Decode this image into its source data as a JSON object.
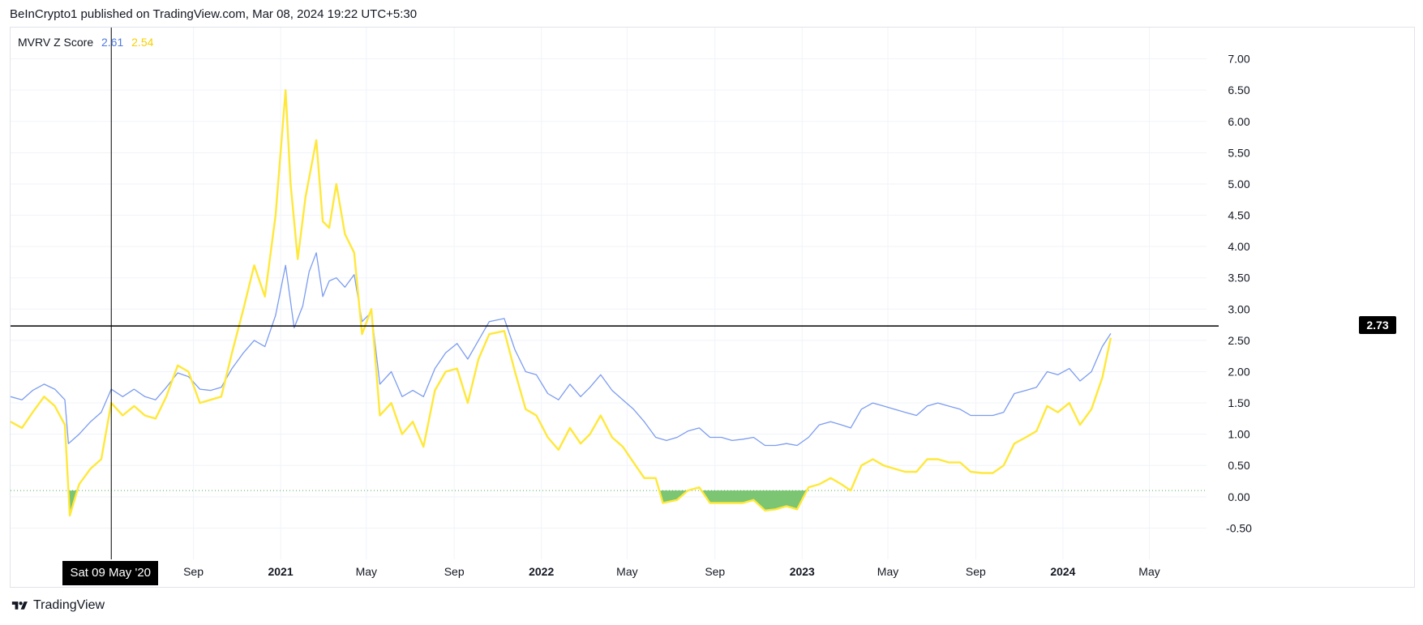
{
  "header": {
    "text": "BeInCrypto1 published on TradingView.com, Mar 08, 2024 19:22 UTC+5:30"
  },
  "legend": {
    "name": "MVRV Z Score",
    "value_blue": "2.61",
    "value_yellow": "2.54"
  },
  "crosshair": {
    "price_label": "2.73",
    "date_label": "Sat 09 May '20"
  },
  "footer": {
    "brand": "TradingView"
  },
  "colors": {
    "blue": "#7b9cf0",
    "yellow": "#ffe83a",
    "green_fill": "#74c26c",
    "grid": "#f0f3fa",
    "baseline_dots": "#4caf50"
  },
  "chart_data": {
    "type": "line",
    "title": "",
    "xlabel": "",
    "ylabel": "",
    "x_range": [
      "2019-12-20",
      "2024-07-20"
    ],
    "ylim": [
      -1.0,
      7.5
    ],
    "y_ticks": [
      "7.00",
      "6.50",
      "6.00",
      "5.50",
      "5.00",
      "4.50",
      "4.00",
      "3.50",
      "3.00",
      "2.50",
      "2.00",
      "1.50",
      "1.00",
      "0.50",
      "0.00",
      "-0.50"
    ],
    "x_ticks": [
      {
        "date": "2020-05-09",
        "label": "Sat 09 May '20",
        "bold": false,
        "hidden": true
      },
      {
        "date": "2020-09-01",
        "label": "Sep",
        "bold": false
      },
      {
        "date": "2021-01-01",
        "label": "2021",
        "bold": true
      },
      {
        "date": "2021-05-01",
        "label": "May",
        "bold": false
      },
      {
        "date": "2021-09-01",
        "label": "Sep",
        "bold": false
      },
      {
        "date": "2022-01-01",
        "label": "2022",
        "bold": true
      },
      {
        "date": "2022-05-01",
        "label": "May",
        "bold": false
      },
      {
        "date": "2022-09-01",
        "label": "Sep",
        "bold": false
      },
      {
        "date": "2023-01-01",
        "label": "2023",
        "bold": true
      },
      {
        "date": "2023-05-01",
        "label": "May",
        "bold": false
      },
      {
        "date": "2023-09-01",
        "label": "Sep",
        "bold": false
      },
      {
        "date": "2024-01-01",
        "label": "2024",
        "bold": true
      },
      {
        "date": "2024-05-01",
        "label": "May",
        "bold": false
      }
    ],
    "grid": true,
    "horizontal_line": 2.73,
    "baseline": 0.1,
    "series": [
      {
        "name": "",
        "color": "#7b9cf0",
        "points": [
          [
            "2019-12-20",
            1.6
          ],
          [
            "2020-01-05",
            1.55
          ],
          [
            "2020-01-20",
            1.7
          ],
          [
            "2020-02-05",
            1.8
          ],
          [
            "2020-02-20",
            1.72
          ],
          [
            "2020-03-05",
            1.55
          ],
          [
            "2020-03-10",
            0.85
          ],
          [
            "2020-03-25",
            1.0
          ],
          [
            "2020-04-10",
            1.2
          ],
          [
            "2020-04-25",
            1.35
          ],
          [
            "2020-05-09",
            1.72
          ],
          [
            "2020-05-25",
            1.6
          ],
          [
            "2020-06-10",
            1.72
          ],
          [
            "2020-06-25",
            1.6
          ],
          [
            "2020-07-10",
            1.55
          ],
          [
            "2020-07-25",
            1.75
          ],
          [
            "2020-08-10",
            1.98
          ],
          [
            "2020-08-25",
            1.92
          ],
          [
            "2020-09-10",
            1.72
          ],
          [
            "2020-09-25",
            1.7
          ],
          [
            "2020-10-10",
            1.75
          ],
          [
            "2020-10-25",
            2.05
          ],
          [
            "2020-11-10",
            2.3
          ],
          [
            "2020-11-25",
            2.5
          ],
          [
            "2020-12-10",
            2.4
          ],
          [
            "2020-12-25",
            2.9
          ],
          [
            "2021-01-08",
            3.7
          ],
          [
            "2021-01-20",
            2.7
          ],
          [
            "2021-02-01",
            3.05
          ],
          [
            "2021-02-10",
            3.6
          ],
          [
            "2021-02-20",
            3.9
          ],
          [
            "2021-03-01",
            3.2
          ],
          [
            "2021-03-10",
            3.45
          ],
          [
            "2021-03-20",
            3.5
          ],
          [
            "2021-04-01",
            3.35
          ],
          [
            "2021-04-14",
            3.55
          ],
          [
            "2021-04-25",
            2.8
          ],
          [
            "2021-05-08",
            2.95
          ],
          [
            "2021-05-20",
            1.8
          ],
          [
            "2021-06-05",
            2.0
          ],
          [
            "2021-06-20",
            1.6
          ],
          [
            "2021-07-05",
            1.7
          ],
          [
            "2021-07-20",
            1.6
          ],
          [
            "2021-08-05",
            2.05
          ],
          [
            "2021-08-20",
            2.3
          ],
          [
            "2021-09-05",
            2.45
          ],
          [
            "2021-09-20",
            2.2
          ],
          [
            "2021-10-05",
            2.5
          ],
          [
            "2021-10-20",
            2.8
          ],
          [
            "2021-11-10",
            2.85
          ],
          [
            "2021-11-25",
            2.35
          ],
          [
            "2021-12-10",
            2.0
          ],
          [
            "2021-12-25",
            1.95
          ],
          [
            "2022-01-10",
            1.65
          ],
          [
            "2022-01-25",
            1.55
          ],
          [
            "2022-02-10",
            1.8
          ],
          [
            "2022-02-25",
            1.6
          ],
          [
            "2022-03-10",
            1.75
          ],
          [
            "2022-03-25",
            1.95
          ],
          [
            "2022-04-10",
            1.7
          ],
          [
            "2022-04-25",
            1.55
          ],
          [
            "2022-05-10",
            1.4
          ],
          [
            "2022-05-25",
            1.2
          ],
          [
            "2022-06-10",
            0.95
          ],
          [
            "2022-06-25",
            0.9
          ],
          [
            "2022-07-10",
            0.95
          ],
          [
            "2022-07-25",
            1.05
          ],
          [
            "2022-08-10",
            1.1
          ],
          [
            "2022-08-25",
            0.95
          ],
          [
            "2022-09-10",
            0.95
          ],
          [
            "2022-09-25",
            0.9
          ],
          [
            "2022-10-10",
            0.92
          ],
          [
            "2022-10-25",
            0.95
          ],
          [
            "2022-11-10",
            0.82
          ],
          [
            "2022-11-25",
            0.82
          ],
          [
            "2022-12-10",
            0.85
          ],
          [
            "2022-12-25",
            0.82
          ],
          [
            "2023-01-10",
            0.95
          ],
          [
            "2023-01-25",
            1.15
          ],
          [
            "2023-02-10",
            1.2
          ],
          [
            "2023-02-25",
            1.15
          ],
          [
            "2023-03-10",
            1.1
          ],
          [
            "2023-03-25",
            1.4
          ],
          [
            "2023-04-10",
            1.5
          ],
          [
            "2023-04-25",
            1.45
          ],
          [
            "2023-05-10",
            1.4
          ],
          [
            "2023-05-25",
            1.35
          ],
          [
            "2023-06-10",
            1.3
          ],
          [
            "2023-06-25",
            1.45
          ],
          [
            "2023-07-10",
            1.5
          ],
          [
            "2023-07-25",
            1.45
          ],
          [
            "2023-08-10",
            1.4
          ],
          [
            "2023-08-25",
            1.3
          ],
          [
            "2023-09-10",
            1.3
          ],
          [
            "2023-09-25",
            1.3
          ],
          [
            "2023-10-10",
            1.35
          ],
          [
            "2023-10-25",
            1.65
          ],
          [
            "2023-11-10",
            1.7
          ],
          [
            "2023-11-25",
            1.75
          ],
          [
            "2023-12-10",
            2.0
          ],
          [
            "2023-12-25",
            1.95
          ],
          [
            "2024-01-10",
            2.05
          ],
          [
            "2024-01-25",
            1.85
          ],
          [
            "2024-02-10",
            2.0
          ],
          [
            "2024-02-25",
            2.4
          ],
          [
            "2024-03-08",
            2.61
          ]
        ]
      },
      {
        "name": "",
        "color": "#ffe83a",
        "points": [
          [
            "2019-12-20",
            1.2
          ],
          [
            "2020-01-05",
            1.1
          ],
          [
            "2020-01-20",
            1.35
          ],
          [
            "2020-02-05",
            1.6
          ],
          [
            "2020-02-20",
            1.45
          ],
          [
            "2020-03-05",
            1.15
          ],
          [
            "2020-03-12",
            -0.3
          ],
          [
            "2020-03-25",
            0.2
          ],
          [
            "2020-04-10",
            0.45
          ],
          [
            "2020-04-25",
            0.6
          ],
          [
            "2020-05-09",
            1.5
          ],
          [
            "2020-05-25",
            1.3
          ],
          [
            "2020-06-10",
            1.45
          ],
          [
            "2020-06-25",
            1.3
          ],
          [
            "2020-07-10",
            1.25
          ],
          [
            "2020-07-25",
            1.6
          ],
          [
            "2020-08-10",
            2.1
          ],
          [
            "2020-08-25",
            2.0
          ],
          [
            "2020-09-10",
            1.5
          ],
          [
            "2020-09-25",
            1.55
          ],
          [
            "2020-10-10",
            1.6
          ],
          [
            "2020-10-25",
            2.3
          ],
          [
            "2020-11-10",
            3.0
          ],
          [
            "2020-11-25",
            3.7
          ],
          [
            "2020-12-10",
            3.2
          ],
          [
            "2020-12-25",
            4.5
          ],
          [
            "2021-01-08",
            6.5
          ],
          [
            "2021-01-15",
            5.0
          ],
          [
            "2021-01-25",
            3.8
          ],
          [
            "2021-02-05",
            4.8
          ],
          [
            "2021-02-20",
            5.7
          ],
          [
            "2021-03-01",
            4.4
          ],
          [
            "2021-03-10",
            4.3
          ],
          [
            "2021-03-20",
            5.0
          ],
          [
            "2021-04-01",
            4.2
          ],
          [
            "2021-04-14",
            3.9
          ],
          [
            "2021-04-25",
            2.6
          ],
          [
            "2021-05-08",
            3.0
          ],
          [
            "2021-05-20",
            1.3
          ],
          [
            "2021-06-05",
            1.5
          ],
          [
            "2021-06-20",
            1.0
          ],
          [
            "2021-07-05",
            1.2
          ],
          [
            "2021-07-20",
            0.8
          ],
          [
            "2021-08-05",
            1.7
          ],
          [
            "2021-08-20",
            2.0
          ],
          [
            "2021-09-05",
            2.05
          ],
          [
            "2021-09-20",
            1.5
          ],
          [
            "2021-10-05",
            2.2
          ],
          [
            "2021-10-20",
            2.6
          ],
          [
            "2021-11-10",
            2.65
          ],
          [
            "2021-11-25",
            2.0
          ],
          [
            "2021-12-10",
            1.4
          ],
          [
            "2021-12-25",
            1.3
          ],
          [
            "2022-01-10",
            0.95
          ],
          [
            "2022-01-25",
            0.75
          ],
          [
            "2022-02-10",
            1.1
          ],
          [
            "2022-02-25",
            0.85
          ],
          [
            "2022-03-10",
            1.0
          ],
          [
            "2022-03-25",
            1.3
          ],
          [
            "2022-04-10",
            0.95
          ],
          [
            "2022-04-25",
            0.8
          ],
          [
            "2022-05-10",
            0.55
          ],
          [
            "2022-05-25",
            0.3
          ],
          [
            "2022-06-10",
            0.3
          ],
          [
            "2022-06-20",
            -0.1
          ],
          [
            "2022-07-10",
            -0.05
          ],
          [
            "2022-07-25",
            0.1
          ],
          [
            "2022-08-10",
            0.15
          ],
          [
            "2022-08-25",
            -0.1
          ],
          [
            "2022-09-10",
            -0.1
          ],
          [
            "2022-09-25",
            -0.1
          ],
          [
            "2022-10-10",
            -0.1
          ],
          [
            "2022-10-25",
            -0.05
          ],
          [
            "2022-11-10",
            -0.22
          ],
          [
            "2022-11-25",
            -0.2
          ],
          [
            "2022-12-10",
            -0.15
          ],
          [
            "2022-12-25",
            -0.2
          ],
          [
            "2023-01-10",
            0.15
          ],
          [
            "2023-01-25",
            0.2
          ],
          [
            "2023-02-10",
            0.3
          ],
          [
            "2023-02-25",
            0.2
          ],
          [
            "2023-03-10",
            0.1
          ],
          [
            "2023-03-25",
            0.5
          ],
          [
            "2023-04-10",
            0.6
          ],
          [
            "2023-04-25",
            0.5
          ],
          [
            "2023-05-10",
            0.45
          ],
          [
            "2023-05-25",
            0.4
          ],
          [
            "2023-06-10",
            0.4
          ],
          [
            "2023-06-25",
            0.6
          ],
          [
            "2023-07-10",
            0.6
          ],
          [
            "2023-07-25",
            0.55
          ],
          [
            "2023-08-10",
            0.55
          ],
          [
            "2023-08-25",
            0.4
          ],
          [
            "2023-09-10",
            0.38
          ],
          [
            "2023-09-25",
            0.38
          ],
          [
            "2023-10-10",
            0.5
          ],
          [
            "2023-10-25",
            0.85
          ],
          [
            "2023-11-10",
            0.95
          ],
          [
            "2023-11-25",
            1.05
          ],
          [
            "2023-12-10",
            1.45
          ],
          [
            "2023-12-25",
            1.35
          ],
          [
            "2024-01-10",
            1.5
          ],
          [
            "2024-01-25",
            1.15
          ],
          [
            "2024-02-10",
            1.4
          ],
          [
            "2024-02-25",
            1.9
          ],
          [
            "2024-03-08",
            2.54
          ]
        ]
      }
    ]
  }
}
